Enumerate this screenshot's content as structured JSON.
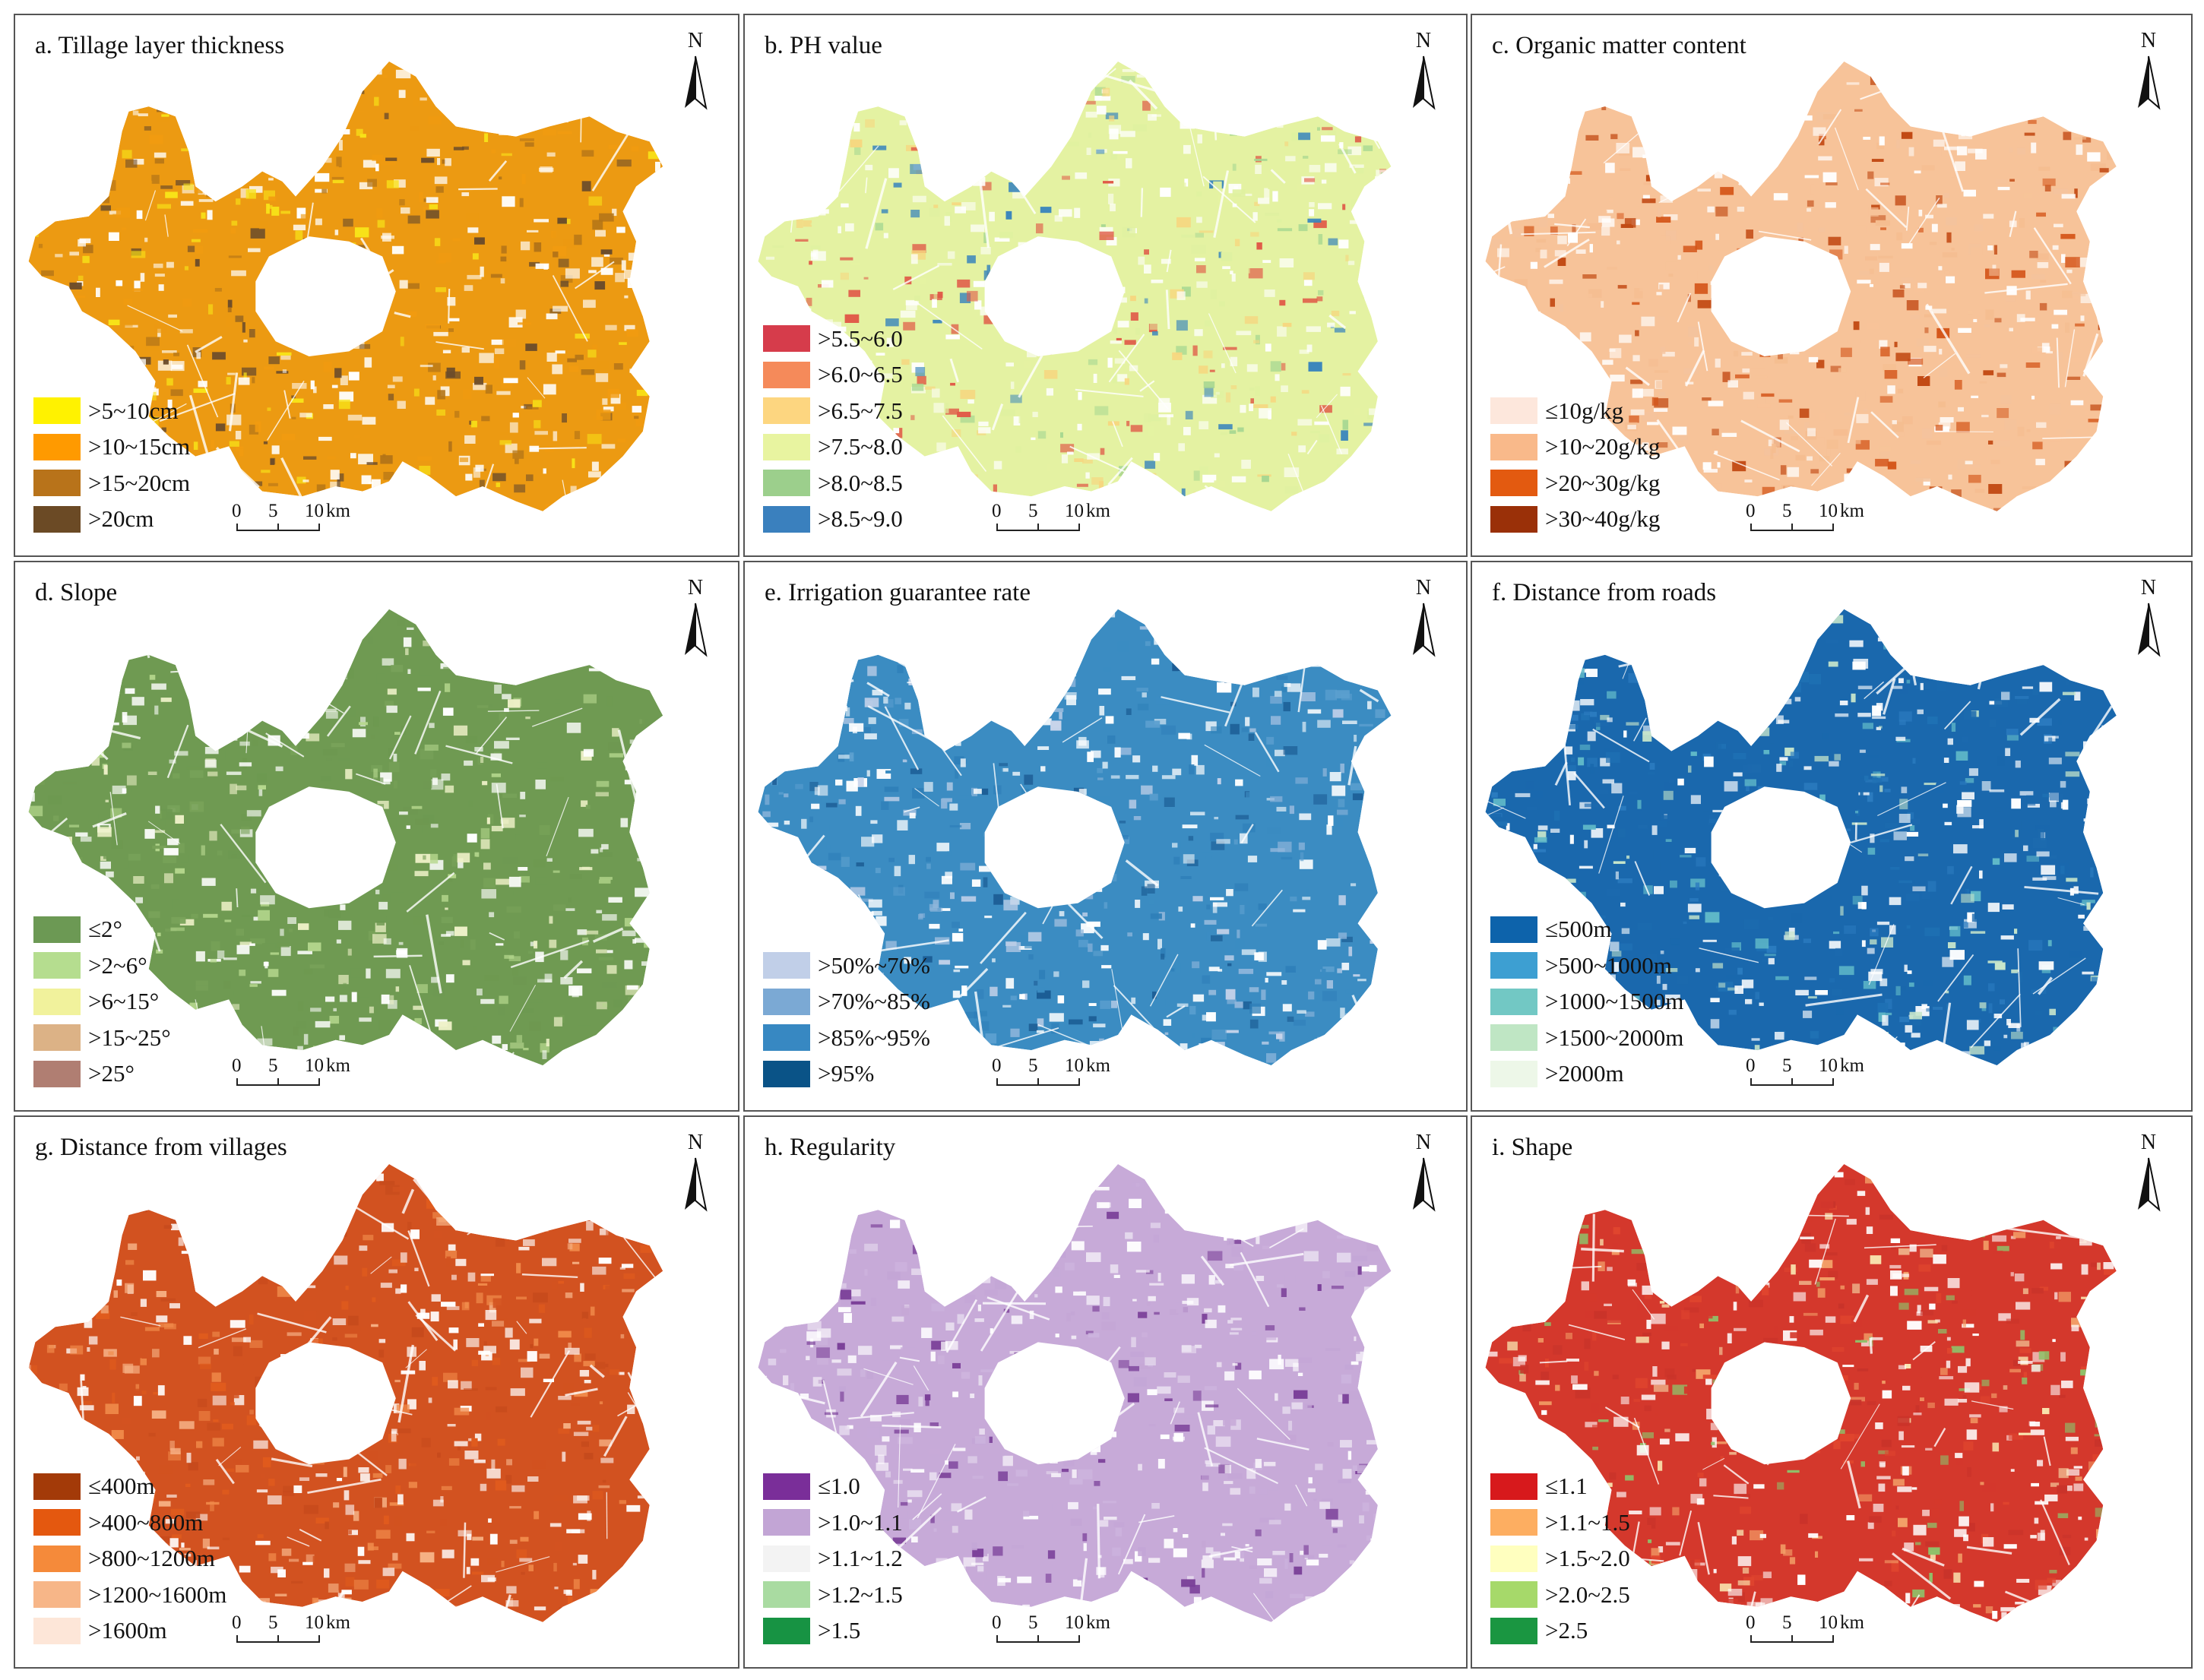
{
  "north_label": "N",
  "scale": {
    "ticks": [
      "0",
      "5",
      "10"
    ],
    "unit": "km"
  },
  "panels": [
    {
      "title": "a. Tillage layer thickness",
      "palette": [
        "#ec9a12",
        "#f19b10",
        "#b37418",
        "#6b4c2b",
        "#f8e318"
      ],
      "legend": [
        {
          "label": ">5~10cm",
          "color": "#fff200"
        },
        {
          "label": ">10~15cm",
          "color": "#ff9a00"
        },
        {
          "label": ">15~20cm",
          "color": "#b8731a"
        },
        {
          "label": ">20cm",
          "color": "#6b4a25"
        }
      ]
    },
    {
      "title": "b. PH value",
      "palette": [
        "#e4f2a2",
        "#dff1a0",
        "#a7d791",
        "#f6d780",
        "#3b86bc",
        "#e05a48"
      ],
      "legend": [
        {
          "label": ">5.5~6.0",
          "color": "#d63c4b"
        },
        {
          "label": ">6.0~6.5",
          "color": "#f58a5a"
        },
        {
          "label": ">6.5~7.5",
          "color": "#fdd680"
        },
        {
          "label": ">7.5~8.0",
          "color": "#e8f4a0"
        },
        {
          "label": ">8.0~8.5",
          "color": "#9ccf8c"
        },
        {
          "label": ">8.5~9.0",
          "color": "#3a80be"
        }
      ]
    },
    {
      "title": "c. Organic matter content",
      "palette": [
        "#f7c399",
        "#f5bd90",
        "#f4c39d",
        "#d4561a",
        "#c24a14"
      ],
      "legend": [
        {
          "label": "≤10g/kg",
          "color": "#fde7dc"
        },
        {
          "label": ">10~20g/kg",
          "color": "#f9b98a"
        },
        {
          "label": ">20~30g/kg",
          "color": "#e35a10"
        },
        {
          "label": ">30~40g/kg",
          "color": "#9a3008"
        }
      ]
    },
    {
      "title": "d. Slope",
      "palette": [
        "#6f9a52",
        "#6d9850",
        "#78a259",
        "#eef1c8",
        "#b6d88e"
      ],
      "legend": [
        {
          "label": "≤2°",
          "color": "#6c9954"
        },
        {
          "label": ">2~6°",
          "color": "#b5dd8f"
        },
        {
          "label": ">6~15°",
          "color": "#f1f29c"
        },
        {
          "label": ">15~25°",
          "color": "#dcb286"
        },
        {
          "label": ">25°",
          "color": "#b07e72"
        }
      ]
    },
    {
      "title": "e. Irrigation guarantee rate",
      "palette": [
        "#3b8cc2",
        "#5b9fcf",
        "#2f7fb9",
        "#c6d3ea",
        "#8fb6db",
        "#1a5a92"
      ],
      "legend": [
        {
          "label": ">50%~70%",
          "color": "#c1cfe8"
        },
        {
          "label": ">70%~85%",
          "color": "#7ba9d4"
        },
        {
          "label": ">85%~95%",
          "color": "#3788c2"
        },
        {
          "label": ">95%",
          "color": "#0a5387"
        }
      ]
    },
    {
      "title": "f. Distance from roads",
      "palette": [
        "#1a68ad",
        "#2b7bbf",
        "#1f71b4",
        "#5fb8c8",
        "#c7e6cb",
        "#1c6aae"
      ],
      "legend": [
        {
          "label": "≤500m",
          "color": "#0d63ab"
        },
        {
          "label": ">500~1000m",
          "color": "#3d9fd2"
        },
        {
          "label": ">1000~1500m",
          "color": "#72c8c4"
        },
        {
          "label": ">1500~2000m",
          "color": "#bfe6c4"
        },
        {
          "label": ">2000m",
          "color": "#edf7e8"
        }
      ]
    },
    {
      "title": "g. Distance from villages",
      "palette": [
        "#d25220",
        "#e05b1d",
        "#c64a1c",
        "#f08a4a",
        "#f6b185"
      ],
      "legend": [
        {
          "label": "≤400m",
          "color": "#a33a08"
        },
        {
          "label": ">400~800m",
          "color": "#e4580f"
        },
        {
          "label": ">800~1200m",
          "color": "#f58a3a"
        },
        {
          "label": ">1200~1600m",
          "color": "#f7b688"
        },
        {
          "label": ">1600m",
          "color": "#fde6d8"
        }
      ]
    },
    {
      "title": "h. Regularity",
      "palette": [
        "#c7aad8",
        "#c4a6d6",
        "#cdb4de",
        "#e6dbee",
        "#7a3f98"
      ],
      "legend": [
        {
          "label": "≤1.0",
          "color": "#7a2e99"
        },
        {
          "label": ">1.0~1.1",
          "color": "#c2a5d5"
        },
        {
          "label": ">1.1~1.2",
          "color": "#f3f3f3"
        },
        {
          "label": ">1.2~1.5",
          "color": "#a9dba1"
        },
        {
          "label": ">1.5",
          "color": "#179343"
        }
      ]
    },
    {
      "title": "i. Shape",
      "palette": [
        "#d4382c",
        "#e0452e",
        "#f3a068",
        "#fae8b2",
        "#c9332a",
        "#8fc069"
      ],
      "legend": [
        {
          "label": "≤1.1",
          "color": "#d7191c"
        },
        {
          "label": ">1.1~1.5",
          "color": "#fdae61"
        },
        {
          "label": ">1.5~2.0",
          "color": "#ffffbf"
        },
        {
          "label": ">2.0~2.5",
          "color": "#a6d96a"
        },
        {
          "label": ">2.5",
          "color": "#1a9641"
        }
      ]
    }
  ]
}
